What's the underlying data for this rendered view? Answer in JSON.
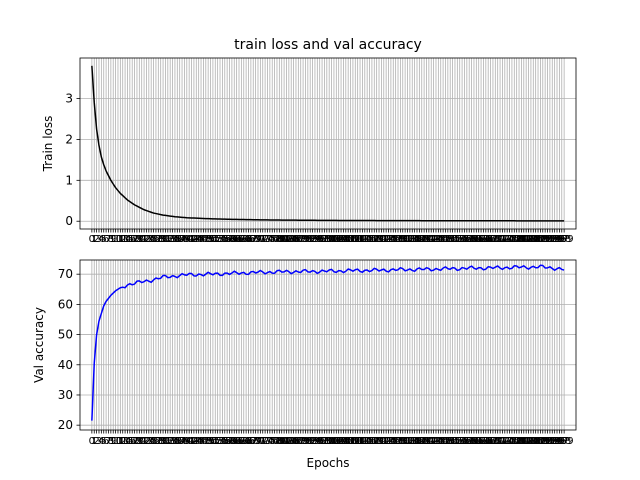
{
  "figure": {
    "title": "train loss and val accuracy"
  },
  "colors": {
    "loss_line": "#000000",
    "acc_line": "#0000ff",
    "grid": "#b0b0b0",
    "axes": "#000000",
    "background": "#ffffff"
  },
  "chart_data": [
    {
      "type": "line",
      "title": "train loss and val accuracy",
      "xlabel": "",
      "ylabel": "Train loss",
      "xlim": [
        -5,
        204
      ],
      "ylim": [
        -0.19,
        3.99
      ],
      "yticks": [
        0,
        1,
        2,
        3
      ],
      "grid": true,
      "x_ticks_every_epoch": true,
      "x": {
        "start": 0,
        "end": 199,
        "step": 1
      },
      "series": [
        {
          "color": "#000000",
          "keypoints_x": [
            0,
            1,
            2,
            3,
            4,
            5,
            6,
            8,
            10,
            12,
            15,
            18,
            22,
            26,
            30,
            35,
            40,
            50,
            60,
            70,
            80,
            100,
            120,
            140,
            160,
            180,
            199
          ],
          "keypoints_y": [
            3.8,
            2.9,
            2.25,
            1.85,
            1.57,
            1.38,
            1.23,
            1.0,
            0.82,
            0.68,
            0.52,
            0.4,
            0.28,
            0.2,
            0.15,
            0.11,
            0.085,
            0.06,
            0.045,
            0.035,
            0.028,
            0.02,
            0.016,
            0.013,
            0.011,
            0.01,
            0.009
          ]
        }
      ]
    },
    {
      "type": "line",
      "title": "",
      "xlabel": "Epochs",
      "ylabel": "Val accuracy",
      "xlim": [
        -5,
        204
      ],
      "ylim": [
        18.4,
        74.7
      ],
      "yticks": [
        20,
        30,
        40,
        50,
        60,
        70
      ],
      "grid": true,
      "x_ticks_every_epoch": true,
      "x": {
        "start": 0,
        "end": 199,
        "step": 1
      },
      "series": [
        {
          "color": "#0000ff",
          "keypoints_x": [
            0,
            1,
            2,
            3,
            4,
            5,
            6,
            8,
            10,
            12,
            15,
            20,
            25,
            30,
            40,
            50,
            60,
            70,
            80,
            90,
            100,
            110,
            120,
            130,
            140,
            150,
            160,
            170,
            180,
            190,
            195,
            199
          ],
          "keypoints_y": [
            21.5,
            40.5,
            50.0,
            54.5,
            57.0,
            59.5,
            61.0,
            63.0,
            64.5,
            65.5,
            66.5,
            67.3,
            68.0,
            69.0,
            69.8,
            70.0,
            70.3,
            70.6,
            70.8,
            70.9,
            71.0,
            71.2,
            71.3,
            71.5,
            71.6,
            71.8,
            72.0,
            72.1,
            72.3,
            72.4,
            72.0,
            71.5
          ]
        }
      ]
    }
  ]
}
